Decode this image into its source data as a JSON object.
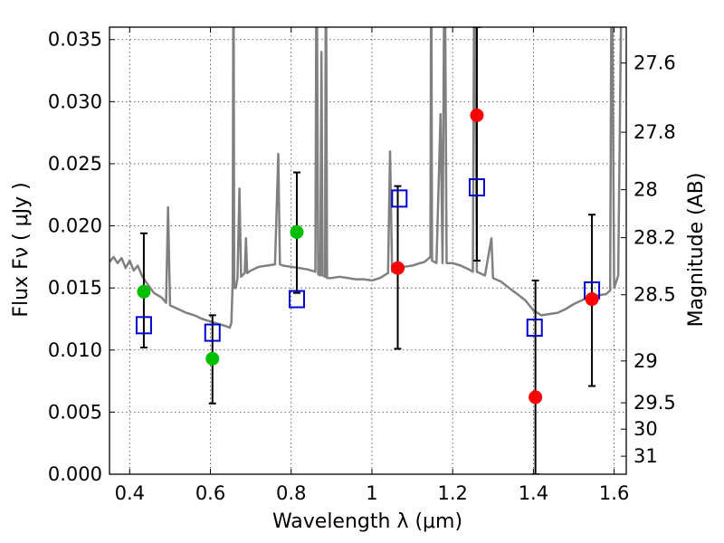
{
  "chart_data": {
    "type": "scatter",
    "title": "",
    "xlabel": "Wavelength  λ (μm)",
    "ylabel": "Flux  Fν  ( μJy )",
    "ylabel_right": "Magnitude (AB)",
    "xlim": [
      0.35,
      1.63
    ],
    "ylim": [
      0,
      0.036
    ],
    "grid": true,
    "legend": "none",
    "x_ticks": [
      0.4,
      0.6,
      0.8,
      1.0,
      1.2,
      1.4,
      1.6
    ],
    "x_tick_labels": [
      "0.4",
      "0.6",
      "0.8",
      "1",
      "1.2",
      "1.4",
      "1.6"
    ],
    "y_ticks": [
      0,
      0.005,
      0.01,
      0.015,
      0.02,
      0.025,
      0.03,
      0.035
    ],
    "y_tick_labels": [
      "0.000",
      "0.005",
      "0.010",
      "0.015",
      "0.020",
      "0.025",
      "0.030",
      "0.035"
    ],
    "mag_ticks": [
      {
        "label": "27.6",
        "flux": 0.03311
      },
      {
        "label": "27.8",
        "flux": 0.02754
      },
      {
        "label": "28",
        "flux": 0.02291
      },
      {
        "label": "28.2",
        "flux": 0.01905
      },
      {
        "label": "28.5",
        "flux": 0.01445
      },
      {
        "label": "29",
        "flux": 0.00912
      },
      {
        "label": "29.5",
        "flux": 0.00575
      },
      {
        "label": "30",
        "flux": 0.00363
      },
      {
        "label": "31",
        "flux": 0.00145
      }
    ],
    "series": [
      {
        "marker": "circle",
        "color": "#00bf00",
        "points": [
          {
            "x": 0.435,
            "y": 0.0147,
            "err": [
              0.0102,
              0.0194
            ]
          },
          {
            "x": 0.605,
            "y": 0.0093,
            "err": [
              0.0057,
              0.0128
            ]
          },
          {
            "x": 0.814,
            "y": 0.0195,
            "err": [
              0.0146,
              0.0243
            ]
          }
        ]
      },
      {
        "marker": "circle",
        "color": "#ff0000",
        "points": [
          {
            "x": 1.064,
            "y": 0.0166,
            "err": [
              0.0101,
              0.0232
            ]
          },
          {
            "x": 1.26,
            "y": 0.0289,
            "err": [
              0.0172,
              0.036
            ]
          },
          {
            "x": 1.405,
            "y": 0.0062,
            "err": [
              0.0,
              0.0156
            ]
          },
          {
            "x": 1.545,
            "y": 0.0141,
            "err": [
              0.0071,
              0.0209
            ]
          }
        ]
      },
      {
        "marker": "open-square",
        "color": "#0000cc",
        "points": [
          {
            "x": 0.435,
            "y": 0.012
          },
          {
            "x": 0.605,
            "y": 0.0114
          },
          {
            "x": 0.814,
            "y": 0.0141
          },
          {
            "x": 1.068,
            "y": 0.0222
          },
          {
            "x": 1.26,
            "y": 0.0231
          },
          {
            "x": 1.403,
            "y": 0.0118
          },
          {
            "x": 1.545,
            "y": 0.0148
          }
        ]
      },
      {
        "type": "line",
        "color": "#808080",
        "points": [
          [
            0.35,
            0.0171
          ],
          [
            0.36,
            0.0175
          ],
          [
            0.37,
            0.017
          ],
          [
            0.38,
            0.0174
          ],
          [
            0.39,
            0.0166
          ],
          [
            0.4,
            0.0172
          ],
          [
            0.41,
            0.0164
          ],
          [
            0.42,
            0.0168
          ],
          [
            0.43,
            0.016
          ],
          [
            0.44,
            0.0155
          ],
          [
            0.46,
            0.0146
          ],
          [
            0.48,
            0.0142
          ],
          [
            0.49,
            0.0138
          ],
          [
            0.495,
            0.0215
          ],
          [
            0.5,
            0.0136
          ],
          [
            0.52,
            0.0133
          ],
          [
            0.54,
            0.013
          ],
          [
            0.56,
            0.0128
          ],
          [
            0.58,
            0.0125
          ],
          [
            0.6,
            0.0123
          ],
          [
            0.62,
            0.0121
          ],
          [
            0.63,
            0.012
          ],
          [
            0.64,
            0.0119
          ],
          [
            0.648,
            0.0118
          ],
          [
            0.652,
            0.0122
          ],
          [
            0.655,
            0.0155
          ],
          [
            0.657,
            0.045
          ],
          [
            0.659,
            0.015
          ],
          [
            0.663,
            0.015
          ],
          [
            0.667,
            0.0158
          ],
          [
            0.672,
            0.023
          ],
          [
            0.676,
            0.0159
          ],
          [
            0.685,
            0.0162
          ],
          [
            0.688,
            0.019
          ],
          [
            0.691,
            0.0162
          ],
          [
            0.7,
            0.0164
          ],
          [
            0.72,
            0.0167
          ],
          [
            0.74,
            0.0168
          ],
          [
            0.76,
            0.0169
          ],
          [
            0.768,
            0.0258
          ],
          [
            0.772,
            0.0169
          ],
          [
            0.78,
            0.0168
          ],
          [
            0.8,
            0.0167
          ],
          [
            0.82,
            0.0166
          ],
          [
            0.84,
            0.0165
          ],
          [
            0.86,
            0.0163
          ],
          [
            0.863,
            0.045
          ],
          [
            0.867,
            0.0161
          ],
          [
            0.872,
            0.016
          ],
          [
            0.875,
            0.034
          ],
          [
            0.878,
            0.016
          ],
          [
            0.884,
            0.0159
          ],
          [
            0.886,
            0.045
          ],
          [
            0.889,
            0.0158
          ],
          [
            0.9,
            0.0158
          ],
          [
            0.92,
            0.0159
          ],
          [
            0.94,
            0.0158
          ],
          [
            0.96,
            0.0157
          ],
          [
            0.98,
            0.0157
          ],
          [
            1.0,
            0.0156
          ],
          [
            1.02,
            0.0158
          ],
          [
            1.04,
            0.0162
          ],
          [
            1.045,
            0.026
          ],
          [
            1.05,
            0.0163
          ],
          [
            1.06,
            0.0165
          ],
          [
            1.08,
            0.0167
          ],
          [
            1.1,
            0.0168
          ],
          [
            1.12,
            0.017
          ],
          [
            1.13,
            0.0171
          ],
          [
            1.145,
            0.0175
          ],
          [
            1.147,
            0.045
          ],
          [
            1.149,
            0.0172
          ],
          [
            1.16,
            0.017
          ],
          [
            1.17,
            0.029
          ],
          [
            1.175,
            0.017
          ],
          [
            1.18,
            0.045
          ],
          [
            1.185,
            0.017
          ],
          [
            1.2,
            0.017
          ],
          [
            1.22,
            0.0168
          ],
          [
            1.24,
            0.0165
          ],
          [
            1.25,
            0.0163
          ],
          [
            1.254,
            0.045
          ],
          [
            1.26,
            0.0163
          ],
          [
            1.28,
            0.016
          ],
          [
            1.296,
            0.019
          ],
          [
            1.3,
            0.0158
          ],
          [
            1.32,
            0.0155
          ],
          [
            1.34,
            0.015
          ],
          [
            1.36,
            0.0145
          ],
          [
            1.38,
            0.014
          ],
          [
            1.4,
            0.0132
          ],
          [
            1.42,
            0.0128
          ],
          [
            1.44,
            0.0129
          ],
          [
            1.46,
            0.013
          ],
          [
            1.48,
            0.0133
          ],
          [
            1.5,
            0.0137
          ],
          [
            1.52,
            0.014
          ],
          [
            1.54,
            0.0143
          ],
          [
            1.56,
            0.0144
          ],
          [
            1.58,
            0.0145
          ],
          [
            1.59,
            0.0148
          ],
          [
            1.594,
            0.045
          ],
          [
            1.6,
            0.015
          ],
          [
            1.61,
            0.016
          ],
          [
            1.62,
            0.045
          ]
        ]
      }
    ]
  }
}
